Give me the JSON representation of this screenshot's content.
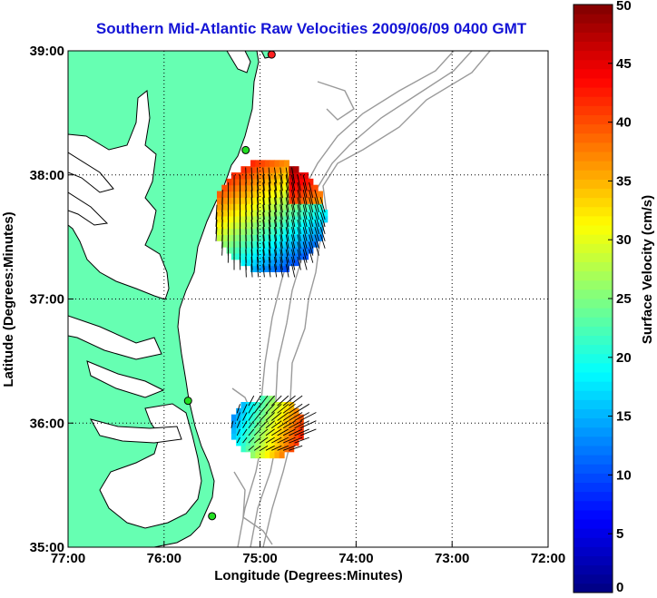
{
  "title": "Southern Mid-Atlantic Raw Velocities 2009/06/09 0400 GMT",
  "map": {
    "xlabel": "Longitude (Degrees:Minutes)",
    "ylabel": "Latitude (Degrees:Minutes)",
    "xlim": [
      -77,
      -72
    ],
    "ylim": [
      35,
      39
    ],
    "x_ticks": [
      {
        "value": -77,
        "label": "77:00"
      },
      {
        "value": -76,
        "label": "76:00"
      },
      {
        "value": -75,
        "label": "75:00"
      },
      {
        "value": -74,
        "label": "74:00"
      },
      {
        "value": -73,
        "label": "73:00"
      },
      {
        "value": -72,
        "label": "72:00"
      }
    ],
    "y_ticks": [
      {
        "value": 35,
        "label": "35:00"
      },
      {
        "value": 36,
        "label": "36:00"
      },
      {
        "value": 37,
        "label": "37:00"
      },
      {
        "value": 38,
        "label": "38:00"
      },
      {
        "value": 39,
        "label": "39:00"
      }
    ],
    "grid": "dotted",
    "land_color": "#66ffb2",
    "water_color": "#ffffff",
    "bathymetry_color": "#9a9a9a",
    "stations": [
      {
        "lon": -74.88,
        "lat": 38.97,
        "color": "#ff2020"
      },
      {
        "lon": -75.15,
        "lat": 38.2,
        "color": "#22dd22"
      },
      {
        "lon": -75.75,
        "lat": 36.18,
        "color": "#22dd22"
      },
      {
        "lon": -75.5,
        "lat": 35.25,
        "color": "#22dd22"
      }
    ],
    "velocity_regions": [
      {
        "name": "north",
        "lon_range": [
          -75.45,
          -74.35
        ],
        "lat_range": [
          37.22,
          38.12
        ],
        "dominant_direction": "south"
      },
      {
        "name": "south",
        "lon_range": [
          -75.3,
          -74.55
        ],
        "lat_range": [
          35.72,
          36.2
        ],
        "dominant_direction": "northeast"
      }
    ]
  },
  "colorbar": {
    "label": "Surface Velocity (cm/s)",
    "min": 0,
    "max": 50,
    "ticks": [
      "0",
      "5",
      "10",
      "15",
      "20",
      "25",
      "30",
      "35",
      "40",
      "45",
      "50"
    ],
    "colormap": "jet"
  }
}
